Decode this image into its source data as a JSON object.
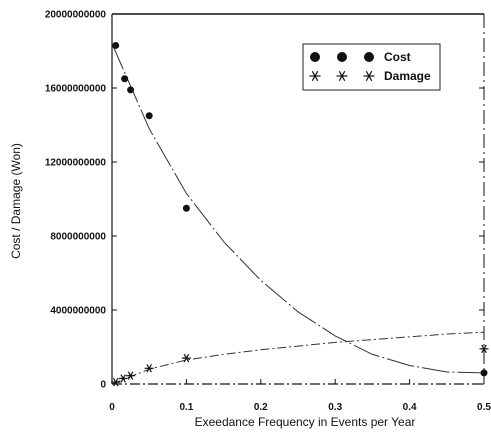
{
  "chart_data": {
    "type": "scatter",
    "title": "",
    "xlabel": "Exeedance Frequency in Events per Year",
    "ylabel": "Cost / Damage (Won)",
    "xlim": [
      0,
      0.5
    ],
    "ylim": [
      0,
      20000000000
    ],
    "x_ticks": [
      0,
      0.1,
      0.2,
      0.3,
      0.4,
      0.5
    ],
    "x_tick_labels": [
      "0",
      "0.1",
      "0.2",
      "0.3",
      "0.4",
      "0.5"
    ],
    "y_ticks": [
      0,
      4000000000,
      8000000000,
      12000000000,
      16000000000,
      20000000000
    ],
    "y_tick_labels": [
      "0",
      "4000000000",
      "8000000000",
      "12000000000",
      "16000000000",
      "20000000000"
    ],
    "grid": false,
    "legend_position": "top-right",
    "series": [
      {
        "name": "Cost",
        "marker": "circle",
        "x": [
          0.005,
          0.017,
          0.025,
          0.05,
          0.1,
          0.5
        ],
        "y": [
          18300000000,
          16500000000,
          15900000000,
          14500000000,
          9500000000,
          600000000
        ],
        "trend": {
          "x": [
            0,
            0.05,
            0.1,
            0.15,
            0.2,
            0.25,
            0.3,
            0.35,
            0.4,
            0.45,
            0.5
          ],
          "y": [
            18400000000,
            13800000000,
            10300000000,
            7700000000,
            5600000000,
            3900000000,
            2600000000,
            1600000000,
            1000000000,
            650000000,
            600000000
          ]
        }
      },
      {
        "name": "Damage",
        "marker": "asterisk",
        "x": [
          0.005,
          0.015,
          0.025,
          0.05,
          0.1,
          0.5
        ],
        "y": [
          100000000,
          300000000,
          450000000,
          850000000,
          1400000000,
          1900000000
        ],
        "trend": {
          "x": [
            0,
            0.05,
            0.1,
            0.15,
            0.2,
            0.25,
            0.3,
            0.35,
            0.4,
            0.45,
            0.5
          ],
          "y": [
            0,
            800000000,
            1300000000,
            1600000000,
            1850000000,
            2050000000,
            2250000000,
            2400000000,
            2550000000,
            2700000000,
            2800000000
          ]
        }
      }
    ]
  },
  "colors": {
    "axis": "#111111",
    "curve": "#333333",
    "marker": "#111111"
  }
}
